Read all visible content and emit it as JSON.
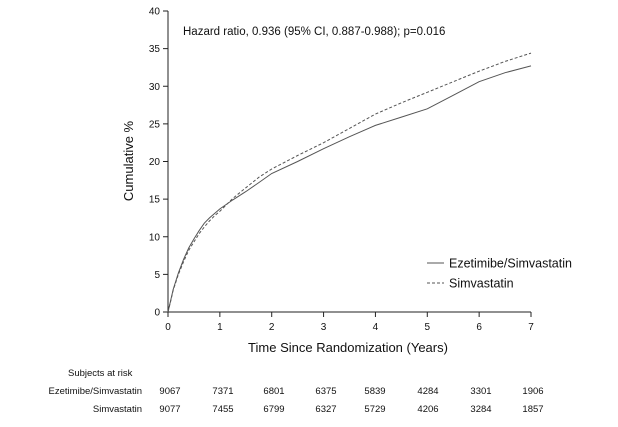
{
  "chart_data": {
    "type": "line",
    "title": "",
    "annotation": "Hazard ratio, 0.936 (95% CI, 0.887-0.988); p=0.016",
    "xlabel": "Time Since Randomization (Years)",
    "ylabel": "Cumulative %",
    "xlim": [
      0,
      7
    ],
    "ylim": [
      0,
      40
    ],
    "x_ticks": [
      0,
      1,
      2,
      3,
      4,
      5,
      6,
      7
    ],
    "y_ticks": [
      0,
      5,
      10,
      15,
      20,
      25,
      30,
      35,
      40
    ],
    "grid": false,
    "legend_position": "lower-right",
    "series": [
      {
        "name": "Ezetimibe/Simvastatin",
        "line_style": "solid",
        "color": "#555555",
        "x": [
          0,
          0.05,
          0.1,
          0.2,
          0.3,
          0.4,
          0.5,
          0.6,
          0.7,
          0.8,
          0.9,
          1.0,
          1.25,
          1.5,
          1.75,
          2.0,
          2.5,
          3.0,
          3.5,
          4.0,
          4.5,
          5.0,
          5.5,
          6.0,
          6.5,
          7.0
        ],
        "y": [
          0,
          1.5,
          3.0,
          5.2,
          7.0,
          8.5,
          9.7,
          10.8,
          11.8,
          12.5,
          13.1,
          13.7,
          14.9,
          16.0,
          17.2,
          18.4,
          20.0,
          21.7,
          23.3,
          24.8,
          25.9,
          27.0,
          28.8,
          30.6,
          31.8,
          32.7
        ]
      },
      {
        "name": "Simvastatin",
        "line_style": "dashed",
        "color": "#555555",
        "x": [
          0,
          0.05,
          0.1,
          0.2,
          0.3,
          0.4,
          0.5,
          0.6,
          0.7,
          0.8,
          0.9,
          1.0,
          1.25,
          1.5,
          1.75,
          2.0,
          2.5,
          3.0,
          3.5,
          4.0,
          4.5,
          5.0,
          5.5,
          6.0,
          6.5,
          7.0
        ],
        "y": [
          0,
          1.4,
          2.9,
          5.0,
          6.7,
          8.2,
          9.3,
          10.4,
          11.3,
          12.1,
          12.8,
          13.4,
          15.1,
          16.5,
          17.9,
          19.0,
          20.8,
          22.5,
          24.4,
          26.3,
          27.8,
          29.2,
          30.6,
          32.0,
          33.3,
          34.4
        ]
      }
    ]
  },
  "risk_table": {
    "header": "Subjects at risk",
    "rows": [
      {
        "label": "Ezetimibe/Simvastatin",
        "values": [
          "9067",
          "7371",
          "6801",
          "6375",
          "5839",
          "4284",
          "3301",
          "1906"
        ]
      },
      {
        "label": "Simvastatin",
        "values": [
          "9077",
          "7455",
          "6799",
          "6327",
          "5729",
          "4206",
          "3284",
          "1857"
        ]
      }
    ]
  }
}
